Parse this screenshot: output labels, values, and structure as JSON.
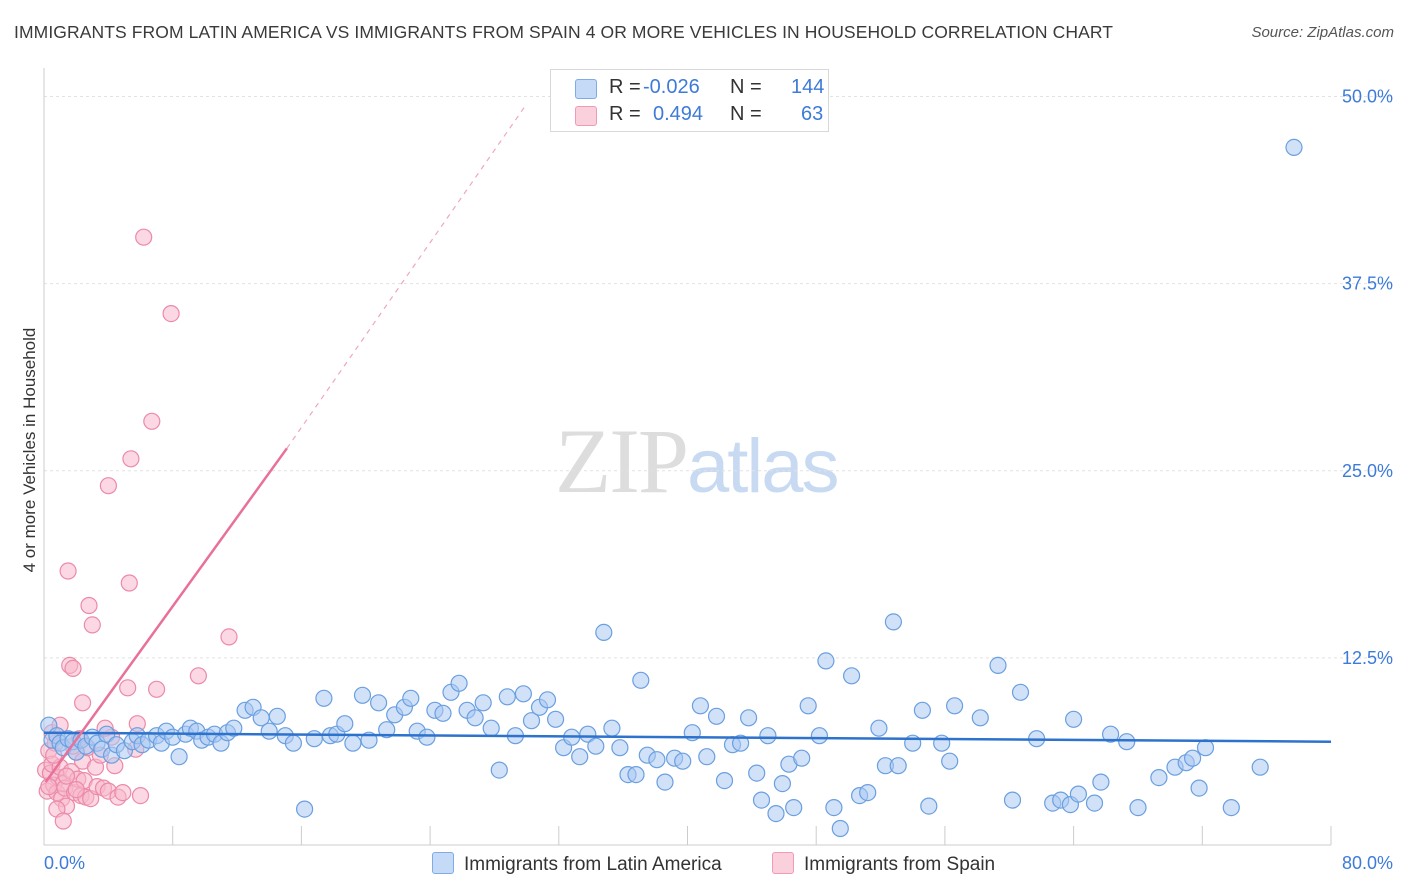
{
  "header": {
    "title": "IMMIGRANTS FROM LATIN AMERICA VS IMMIGRANTS FROM SPAIN 4 OR MORE VEHICLES IN HOUSEHOLD CORRELATION CHART",
    "source": "Source: ZipAtlas.com"
  },
  "watermark": {
    "zip": "ZIP",
    "atlas": "atlas"
  },
  "legend": {
    "rows": [
      {
        "r_label": "R =",
        "r_value": "-0.026",
        "n_label": "N =",
        "n_value": "144",
        "color": "#a9c8f2"
      },
      {
        "r_label": "R =",
        "r_value": "0.494",
        "n_label": "N =",
        "n_value": "63",
        "color": "#f7b8cc"
      }
    ]
  },
  "bottom_legend": {
    "series1": "Immigrants from Latin America",
    "series2": "Immigrants from Spain"
  },
  "colors": {
    "blue_fill": "#a9c8f2",
    "blue_stroke": "#6a9fe0",
    "blue_line": "#2d72cc",
    "pink_fill": "#f7b8cc",
    "pink_stroke": "#ec8aa8",
    "pink_line": "#e8709a",
    "tick_text": "#3d7bd9",
    "grid": "#e2e2e2"
  },
  "chart_data": {
    "type": "scatter",
    "title": "IMMIGRANTS FROM LATIN AMERICA VS IMMIGRANTS FROM SPAIN 4 OR MORE VEHICLES IN HOUSEHOLD CORRELATION CHART",
    "xlabel": "",
    "ylabel": "4 or more Vehicles in Household",
    "xlim": [
      0,
      80
    ],
    "ylim": [
      0,
      50
    ],
    "x_tick_labels": [
      "0.0%",
      "80.0%"
    ],
    "y_ticks": [
      12.5,
      25.0,
      37.5,
      50.0
    ],
    "y_tick_labels": [
      "12.5%",
      "25.0%",
      "37.5%",
      "50.0%"
    ],
    "grid": true,
    "legend_position": "top-center",
    "series": [
      {
        "name": "Immigrants from Latin America",
        "R": -0.026,
        "N": 144,
        "trend": {
          "x": [
            0,
            80
          ],
          "y": [
            7.5,
            6.9
          ]
        },
        "points": [
          [
            0.3,
            8.0
          ],
          [
            0.5,
            7.0
          ],
          [
            0.8,
            7.3
          ],
          [
            1.0,
            6.8
          ],
          [
            1.2,
            6.5
          ],
          [
            1.5,
            7.1
          ],
          [
            1.8,
            6.9
          ],
          [
            2.0,
            6.2
          ],
          [
            2.3,
            7.0
          ],
          [
            2.6,
            6.6
          ],
          [
            3.0,
            7.2
          ],
          [
            3.3,
            6.8
          ],
          [
            3.6,
            6.4
          ],
          [
            3.9,
            7.4
          ],
          [
            4.2,
            6.0
          ],
          [
            4.5,
            6.7
          ],
          [
            5.0,
            6.3
          ],
          [
            5.5,
            6.9
          ],
          [
            5.8,
            7.3
          ],
          [
            6.1,
            6.7
          ],
          [
            6.5,
            7.0
          ],
          [
            7.0,
            7.3
          ],
          [
            7.3,
            6.8
          ],
          [
            7.6,
            7.6
          ],
          [
            8.0,
            7.2
          ],
          [
            8.4,
            5.9
          ],
          [
            8.8,
            7.4
          ],
          [
            9.1,
            7.8
          ],
          [
            9.5,
            7.6
          ],
          [
            9.8,
            7.0
          ],
          [
            10.2,
            7.2
          ],
          [
            10.6,
            7.4
          ],
          [
            11.0,
            6.8
          ],
          [
            11.4,
            7.5
          ],
          [
            11.8,
            7.8
          ],
          [
            12.5,
            9.0
          ],
          [
            13.0,
            9.2
          ],
          [
            13.5,
            8.5
          ],
          [
            14.0,
            7.6
          ],
          [
            14.5,
            8.6
          ],
          [
            15.0,
            7.3
          ],
          [
            15.5,
            6.8
          ],
          [
            16.2,
            2.4
          ],
          [
            16.8,
            7.1
          ],
          [
            17.4,
            9.8
          ],
          [
            17.8,
            7.3
          ],
          [
            18.2,
            7.4
          ],
          [
            18.7,
            8.1
          ],
          [
            19.2,
            6.8
          ],
          [
            19.8,
            10.0
          ],
          [
            20.2,
            7.0
          ],
          [
            20.8,
            9.5
          ],
          [
            21.3,
            7.7
          ],
          [
            21.8,
            8.7
          ],
          [
            22.4,
            9.2
          ],
          [
            22.8,
            9.8
          ],
          [
            23.2,
            7.6
          ],
          [
            23.8,
            7.2
          ],
          [
            24.3,
            9.0
          ],
          [
            24.8,
            8.8
          ],
          [
            25.3,
            10.2
          ],
          [
            25.8,
            10.8
          ],
          [
            26.3,
            9.0
          ],
          [
            26.8,
            8.5
          ],
          [
            27.3,
            9.5
          ],
          [
            27.8,
            7.8
          ],
          [
            28.3,
            5.0
          ],
          [
            28.8,
            9.9
          ],
          [
            29.3,
            7.3
          ],
          [
            29.8,
            10.1
          ],
          [
            30.3,
            8.3
          ],
          [
            30.8,
            9.2
          ],
          [
            31.3,
            9.7
          ],
          [
            31.8,
            8.4
          ],
          [
            32.3,
            6.5
          ],
          [
            32.8,
            7.2
          ],
          [
            33.3,
            5.9
          ],
          [
            33.8,
            7.4
          ],
          [
            34.3,
            6.6
          ],
          [
            34.8,
            14.2
          ],
          [
            35.3,
            7.8
          ],
          [
            35.8,
            6.5
          ],
          [
            36.3,
            4.7
          ],
          [
            36.8,
            4.7
          ],
          [
            37.1,
            11.0
          ],
          [
            37.5,
            6.0
          ],
          [
            38.1,
            5.7
          ],
          [
            38.6,
            4.2
          ],
          [
            39.2,
            5.8
          ],
          [
            39.7,
            5.6
          ],
          [
            40.3,
            7.5
          ],
          [
            40.8,
            9.3
          ],
          [
            41.2,
            5.9
          ],
          [
            41.8,
            8.6
          ],
          [
            42.3,
            4.3
          ],
          [
            42.8,
            6.7
          ],
          [
            43.3,
            6.8
          ],
          [
            43.8,
            8.5
          ],
          [
            44.3,
            4.8
          ],
          [
            44.6,
            3.0
          ],
          [
            45.0,
            7.3
          ],
          [
            45.5,
            2.1
          ],
          [
            45.9,
            4.1
          ],
          [
            46.3,
            5.4
          ],
          [
            46.6,
            2.5
          ],
          [
            47.1,
            5.8
          ],
          [
            47.5,
            9.3
          ],
          [
            48.2,
            7.3
          ],
          [
            48.6,
            12.3
          ],
          [
            49.1,
            2.5
          ],
          [
            49.5,
            1.1
          ],
          [
            50.2,
            11.3
          ],
          [
            50.7,
            3.3
          ],
          [
            51.2,
            3.5
          ],
          [
            51.9,
            7.8
          ],
          [
            52.3,
            5.3
          ],
          [
            52.8,
            14.9
          ],
          [
            53.1,
            5.3
          ],
          [
            54.0,
            6.8
          ],
          [
            54.6,
            9.0
          ],
          [
            55.0,
            2.6
          ],
          [
            55.8,
            6.8
          ],
          [
            56.3,
            5.6
          ],
          [
            56.6,
            9.3
          ],
          [
            58.2,
            8.5
          ],
          [
            59.3,
            12.0
          ],
          [
            60.2,
            3.0
          ],
          [
            60.7,
            10.2
          ],
          [
            61.7,
            7.1
          ],
          [
            62.7,
            2.8
          ],
          [
            63.2,
            3.0
          ],
          [
            63.8,
            2.7
          ],
          [
            64.0,
            8.4
          ],
          [
            64.3,
            3.4
          ],
          [
            65.3,
            2.8
          ],
          [
            65.7,
            4.2
          ],
          [
            66.3,
            7.4
          ],
          [
            67.3,
            6.9
          ],
          [
            68.0,
            2.5
          ],
          [
            69.3,
            4.5
          ],
          [
            70.3,
            5.2
          ],
          [
            71.0,
            5.5
          ],
          [
            71.4,
            5.8
          ],
          [
            71.8,
            3.8
          ],
          [
            72.2,
            6.5
          ],
          [
            73.8,
            2.5
          ],
          [
            75.6,
            5.2
          ],
          [
            77.7,
            46.6
          ]
        ]
      },
      {
        "name": "Immigrants from Spain",
        "R": 0.494,
        "N": 63,
        "trend_solid": {
          "x": [
            0.1,
            15.1
          ],
          "y": [
            4.2,
            26.5
          ]
        },
        "trend_dashed": {
          "x": [
            15.1,
            30.0
          ],
          "y": [
            26.5,
            49.5
          ]
        },
        "points": [
          [
            0.1,
            5.0
          ],
          [
            0.2,
            3.6
          ],
          [
            0.3,
            6.3
          ],
          [
            0.4,
            4.8
          ],
          [
            0.5,
            5.4
          ],
          [
            0.6,
            4.0
          ],
          [
            0.7,
            6.8
          ],
          [
            0.8,
            3.5
          ],
          [
            0.9,
            4.5
          ],
          [
            1.0,
            5.2
          ],
          [
            1.1,
            3.1
          ],
          [
            1.2,
            4.1
          ],
          [
            1.3,
            3.8
          ],
          [
            1.4,
            2.6
          ],
          [
            1.5,
            18.3
          ],
          [
            1.6,
            12.0
          ],
          [
            1.7,
            4.9
          ],
          [
            1.8,
            11.8
          ],
          [
            1.9,
            3.5
          ],
          [
            2.0,
            6.2
          ],
          [
            2.1,
            4.4
          ],
          [
            2.2,
            7.1
          ],
          [
            2.3,
            3.3
          ],
          [
            2.4,
            5.6
          ],
          [
            2.5,
            4.3
          ],
          [
            2.6,
            3.2
          ],
          [
            2.7,
            6.5
          ],
          [
            2.8,
            16.0
          ],
          [
            2.9,
            3.1
          ],
          [
            3.0,
            14.7
          ],
          [
            3.2,
            5.2
          ],
          [
            3.3,
            3.9
          ],
          [
            3.5,
            6.0
          ],
          [
            3.7,
            3.8
          ],
          [
            4.0,
            3.6
          ],
          [
            4.2,
            7.2
          ],
          [
            4.4,
            5.3
          ],
          [
            4.6,
            3.2
          ],
          [
            4.9,
            3.5
          ],
          [
            5.2,
            10.5
          ],
          [
            5.3,
            17.5
          ],
          [
            5.4,
            25.8
          ],
          [
            5.7,
            6.4
          ],
          [
            5.8,
            8.1
          ],
          [
            6.0,
            3.3
          ],
          [
            6.2,
            40.6
          ],
          [
            6.7,
            28.3
          ],
          [
            7.0,
            10.4
          ],
          [
            7.9,
            35.5
          ],
          [
            9.6,
            11.3
          ],
          [
            11.5,
            13.9
          ],
          [
            0.8,
            2.4
          ],
          [
            1.2,
            1.6
          ],
          [
            0.5,
            7.5
          ],
          [
            1.0,
            8.0
          ],
          [
            1.8,
            6.6
          ],
          [
            2.4,
            9.5
          ],
          [
            0.3,
            3.9
          ],
          [
            0.6,
            6.0
          ],
          [
            1.4,
            4.6
          ],
          [
            2.0,
            3.7
          ],
          [
            4.0,
            24.0
          ],
          [
            3.8,
            7.8
          ]
        ]
      }
    ]
  }
}
